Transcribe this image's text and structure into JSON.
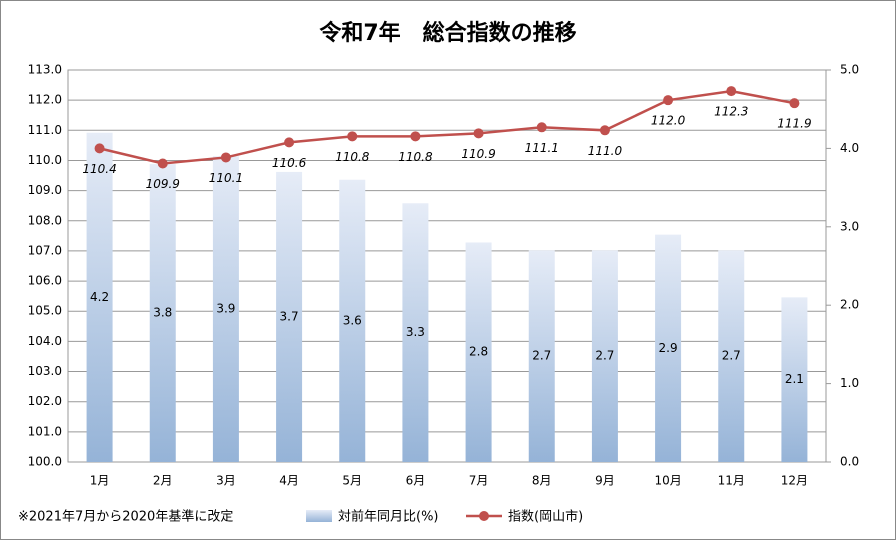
{
  "chart_data": {
    "type": "combo",
    "title": "令和7年　総合指数の推移",
    "annotation": "※2021年7月から2020年基準に改定",
    "categories": [
      "1月",
      "2月",
      "3月",
      "4月",
      "5月",
      "6月",
      "7月",
      "8月",
      "9月",
      "10月",
      "11月",
      "12月"
    ],
    "series": [
      {
        "name": "対前年同月比(%)",
        "type": "bar",
        "axis": "y2",
        "color": "#95b3d7",
        "values": [
          4.2,
          3.8,
          3.9,
          3.7,
          3.6,
          3.3,
          2.8,
          2.7,
          2.7,
          2.9,
          2.7,
          2.1
        ]
      },
      {
        "name": "指数(岡山市)",
        "type": "line",
        "color": "#c0504d",
        "values": [
          110.4,
          109.9,
          110.1,
          110.6,
          110.8,
          110.8,
          110.9,
          111.1,
          111.0,
          112.0,
          112.3,
          111.9
        ],
        "value_labels": [
          "110.4",
          "109.9",
          "110.1",
          "110.6",
          "110.8",
          "110.8",
          "110.9",
          "111.1",
          "111.0",
          "112.0",
          "112.3",
          "111.9"
        ]
      }
    ],
    "ylim": [
      100,
      113
    ],
    "yticks": [
      {
        "value": 100,
        "label": "100.0"
      },
      {
        "value": 101,
        "label": "101.0"
      },
      {
        "value": 102,
        "label": "102.0"
      },
      {
        "value": 103,
        "label": "103.0"
      },
      {
        "value": 104,
        "label": "104.0"
      },
      {
        "value": 105,
        "label": "105.0"
      },
      {
        "value": 106,
        "label": "106.0"
      },
      {
        "value": 107,
        "label": "107.0"
      },
      {
        "value": 108,
        "label": "108.0"
      },
      {
        "value": 109,
        "label": "109.0"
      },
      {
        "value": 110,
        "label": "110.0"
      },
      {
        "value": 111,
        "label": "111.0"
      },
      {
        "value": 112,
        "label": "112.0"
      },
      {
        "value": 113,
        "label": "113.0"
      }
    ],
    "y2lim": [
      0,
      5
    ],
    "y2ticks": [
      {
        "value": 0,
        "label": "0.0"
      },
      {
        "value": 1,
        "label": "1.0"
      },
      {
        "value": 2,
        "label": "2.0"
      },
      {
        "value": 3,
        "label": "3.0"
      },
      {
        "value": 4,
        "label": "4.0"
      },
      {
        "value": 5,
        "label": "5.0"
      }
    ],
    "grid": true
  }
}
